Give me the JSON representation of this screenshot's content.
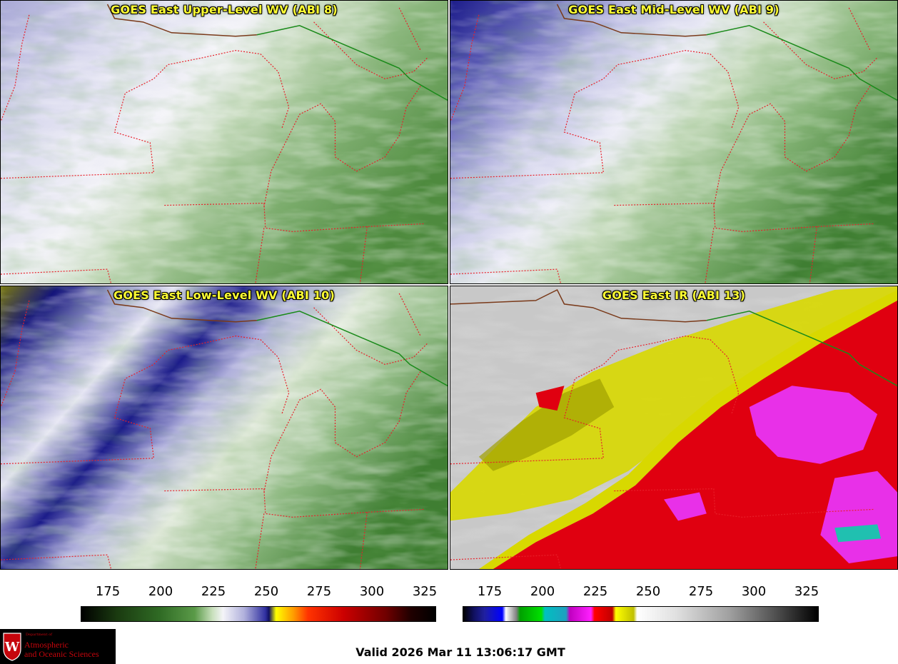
{
  "panels": [
    {
      "id": "upper",
      "title": "GOES East Upper-Level WV (ABI 8)"
    },
    {
      "id": "mid",
      "title": "GOES East Mid-Level WV (ABI 9)"
    },
    {
      "id": "low",
      "title": "GOES East Low-Level WV (ABI 10)"
    },
    {
      "id": "ir",
      "title": "GOES East IR (ABI 13)"
    }
  ],
  "colorbars": {
    "wv": {
      "ticks": [
        "175",
        "200",
        "225",
        "250",
        "275",
        "300",
        "325"
      ]
    },
    "ir": {
      "ticks": [
        "175",
        "200",
        "225",
        "250",
        "275",
        "300",
        "325"
      ]
    }
  },
  "valid_time": "Valid 2026 Mar 11 13:06:17 GMT",
  "logo": {
    "dept": "Department of",
    "line1": "Atmospheric",
    "line2": "and Oceanic Sciences",
    "seal_letter": "W"
  },
  "colors": {
    "state_border": "#e8202a",
    "canada_border": "#1a8a1a",
    "coast": "#7a3a1a",
    "title": "#ffff33"
  }
}
